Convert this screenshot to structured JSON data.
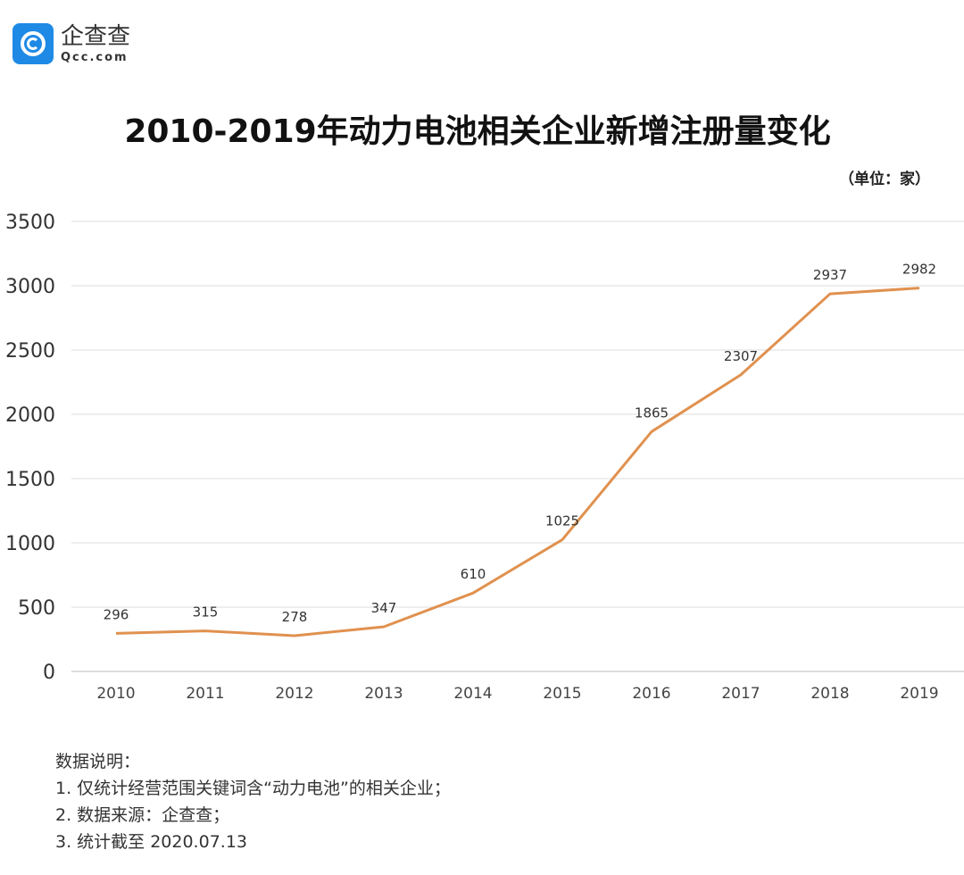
{
  "logo": {
    "cn": "企查查",
    "en": "Qcc.com"
  },
  "chart_data": {
    "type": "line",
    "title": "2010-2019年动力电池相关企业新增注册量变化",
    "unit_label": "（单位：家）",
    "categories": [
      "2010",
      "2011",
      "2012",
      "2013",
      "2014",
      "2015",
      "2016",
      "2017",
      "2018",
      "2019"
    ],
    "values": [
      296,
      315,
      278,
      347,
      610,
      1025,
      1865,
      2307,
      2937,
      2982
    ],
    "ylim": [
      0,
      3500
    ],
    "yticks": [
      0,
      500,
      1000,
      1500,
      2000,
      2500,
      3000,
      3500
    ],
    "grid": true,
    "line_color": "#E0914F"
  },
  "notes": {
    "heading": "数据说明：",
    "items": [
      "1. 仅统计经营范围关键词含“动力电池”的相关企业；",
      "2. 数据来源：企查查；",
      "3. 统计截至 2020.07.13"
    ]
  }
}
